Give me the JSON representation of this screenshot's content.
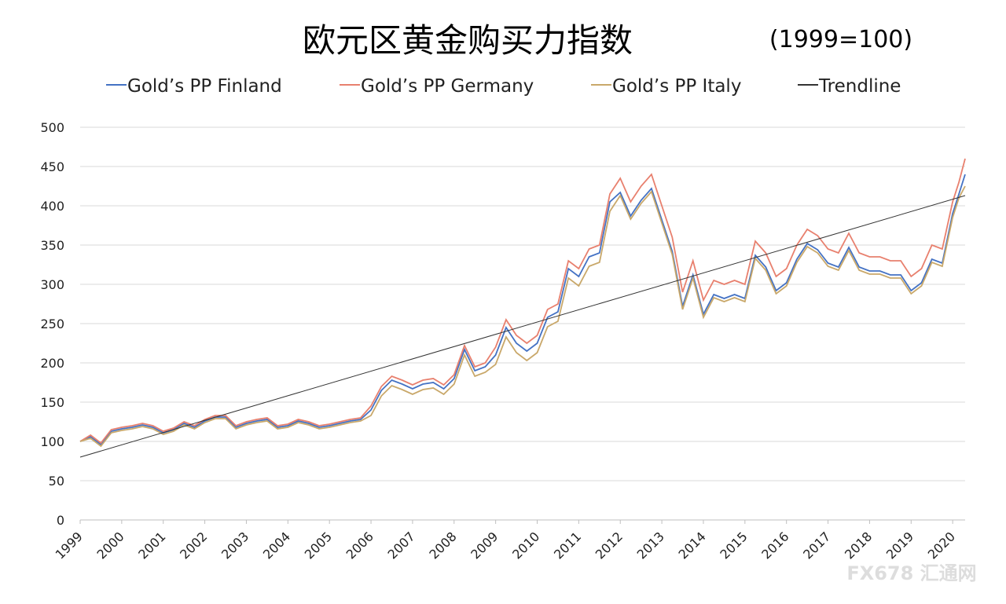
{
  "chart_data": {
    "type": "line",
    "title": "欧元区黄金购买力指数",
    "subtitle": "(1999=100)",
    "watermark": "FX678 汇通网",
    "x": [
      1999,
      1999.25,
      1999.5,
      1999.75,
      2000,
      2000.25,
      2000.5,
      2000.75,
      2001,
      2001.25,
      2001.5,
      2001.75,
      2002,
      2002.25,
      2002.5,
      2002.75,
      2003,
      2003.25,
      2003.5,
      2003.75,
      2004,
      2004.25,
      2004.5,
      2004.75,
      2005,
      2005.25,
      2005.5,
      2005.75,
      2006,
      2006.25,
      2006.5,
      2006.75,
      2007,
      2007.25,
      2007.5,
      2007.75,
      2008,
      2008.25,
      2008.5,
      2008.75,
      2009,
      2009.25,
      2009.5,
      2009.75,
      2010,
      2010.25,
      2010.5,
      2010.75,
      2011,
      2011.25,
      2011.5,
      2011.75,
      2012,
      2012.25,
      2012.5,
      2012.75,
      2013,
      2013.25,
      2013.5,
      2013.75,
      2014,
      2014.25,
      2014.5,
      2014.75,
      2015,
      2015.25,
      2015.5,
      2015.75,
      2016,
      2016.25,
      2016.5,
      2016.75,
      2017,
      2017.25,
      2017.5,
      2017.75,
      2018,
      2018.25,
      2018.5,
      2018.75,
      2019,
      2019.25,
      2019.5,
      2019.75,
      2020,
      2020.15,
      2020.3
    ],
    "series": [
      {
        "name": "Gold’s PP Finland",
        "color": "#4472c4",
        "values": [
          100,
          106,
          96,
          113,
          116,
          118,
          121,
          118,
          111,
          115,
          123,
          118,
          126,
          131,
          131,
          118,
          123,
          126,
          128,
          118,
          120,
          126,
          123,
          118,
          120,
          123,
          126,
          128,
          140,
          165,
          178,
          173,
          167,
          173,
          175,
          167,
          180,
          217,
          190,
          195,
          210,
          245,
          225,
          215,
          225,
          258,
          265,
          320,
          310,
          335,
          340,
          405,
          417,
          387,
          407,
          422,
          382,
          342,
          272,
          312,
          262,
          287,
          282,
          287,
          282,
          337,
          322,
          292,
          302,
          332,
          352,
          344,
          327,
          322,
          347,
          322,
          317,
          317,
          312,
          312,
          292,
          302,
          332,
          327,
          390,
          415,
          440
        ]
      },
      {
        "name": "Gold’s PP Germany",
        "color": "#e8806e",
        "values": [
          100,
          108,
          98,
          115,
          118,
          120,
          123,
          120,
          113,
          117,
          125,
          120,
          128,
          133,
          133,
          120,
          125,
          128,
          130,
          120,
          122,
          128,
          125,
          120,
          122,
          125,
          128,
          130,
          145,
          170,
          183,
          178,
          172,
          178,
          180,
          172,
          185,
          222,
          195,
          200,
          220,
          255,
          235,
          225,
          235,
          268,
          275,
          330,
          320,
          345,
          350,
          415,
          435,
          405,
          425,
          440,
          400,
          360,
          290,
          330,
          280,
          305,
          300,
          305,
          300,
          355,
          340,
          310,
          320,
          350,
          370,
          362,
          345,
          340,
          365,
          340,
          335,
          335,
          330,
          330,
          310,
          320,
          350,
          345,
          405,
          430,
          460
        ]
      },
      {
        "name": "Gold’s PP Italy",
        "color": "#c9a86a",
        "values": [
          100,
          104,
          94,
          111,
          114,
          116,
          119,
          116,
          109,
          113,
          121,
          116,
          124,
          129,
          129,
          116,
          121,
          124,
          126,
          116,
          118,
          124,
          121,
          116,
          118,
          121,
          124,
          126,
          133,
          158,
          171,
          166,
          160,
          166,
          168,
          160,
          173,
          210,
          183,
          188,
          198,
          233,
          213,
          203,
          213,
          246,
          253,
          308,
          298,
          323,
          328,
          393,
          413,
          383,
          403,
          418,
          378,
          338,
          268,
          308,
          258,
          283,
          278,
          283,
          278,
          333,
          318,
          288,
          298,
          328,
          348,
          340,
          323,
          318,
          343,
          318,
          313,
          313,
          308,
          308,
          288,
          298,
          328,
          323,
          385,
          410,
          425
        ]
      },
      {
        "name": "Trendline",
        "color": "#333333",
        "x": [
          1999,
          2020.3
        ],
        "values": [
          80,
          413
        ]
      }
    ],
    "xlim": [
      1999,
      2020.3
    ],
    "xticks": [
      1999,
      2000,
      2001,
      2002,
      2003,
      2004,
      2005,
      2006,
      2007,
      2008,
      2009,
      2010,
      2011,
      2012,
      2013,
      2014,
      2015,
      2016,
      2017,
      2018,
      2019,
      2020
    ],
    "ylim": [
      0,
      500
    ],
    "yticks": [
      0,
      50,
      100,
      150,
      200,
      250,
      300,
      350,
      400,
      450,
      500
    ],
    "grid": true,
    "legend": "top"
  }
}
